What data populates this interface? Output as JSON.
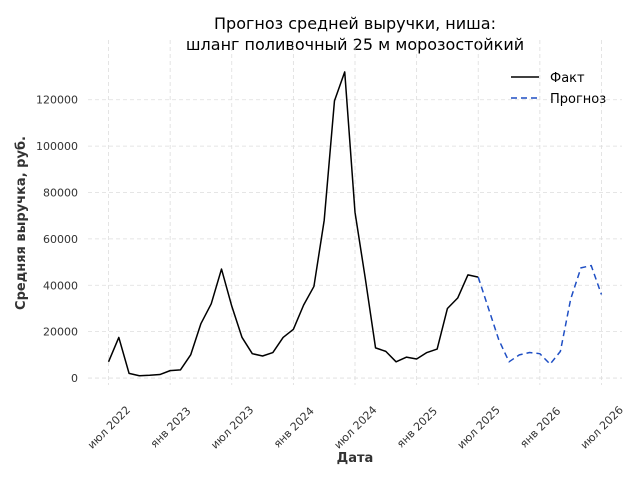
{
  "chart_data": {
    "type": "line",
    "title_line1": "Прогноз средней выручки, ниша:",
    "title_line2": "шланг поливочный 25 м морозостойкий",
    "xlabel": "Дата",
    "ylabel": "Средняя выручка, руб.",
    "ylim": [
      -3000,
      138000
    ],
    "yticks": [
      0,
      20000,
      40000,
      60000,
      80000,
      100000,
      120000
    ],
    "xticks": [
      {
        "date": "2022-07",
        "label": "июл 2022"
      },
      {
        "date": "2023-01",
        "label": "янв 2023"
      },
      {
        "date": "2023-07",
        "label": "июл 2023"
      },
      {
        "date": "2024-01",
        "label": "янв 2024"
      },
      {
        "date": "2024-07",
        "label": "июл 2024"
      },
      {
        "date": "2025-01",
        "label": "янв 2025"
      },
      {
        "date": "2025-07",
        "label": "июл 2025"
      },
      {
        "date": "2026-01",
        "label": "янв 2026"
      },
      {
        "date": "2026-07",
        "label": "июл 2026"
      }
    ],
    "xlim": [
      "2022-05",
      "2026-09"
    ],
    "grid": true,
    "legend_position": "top-right",
    "series": [
      {
        "name": "Факт",
        "color": "#000000",
        "style": "solid",
        "points": [
          [
            "2022-07",
            7000
          ],
          [
            "2022-08",
            17500
          ],
          [
            "2022-09",
            2000
          ],
          [
            "2022-10",
            1000
          ],
          [
            "2022-11",
            1200
          ],
          [
            "2022-12",
            1500
          ],
          [
            "2023-01",
            3200
          ],
          [
            "2023-02",
            3500
          ],
          [
            "2023-03",
            10000
          ],
          [
            "2023-04",
            23500
          ],
          [
            "2023-05",
            32000
          ],
          [
            "2023-06",
            47000
          ],
          [
            "2023-07",
            31000
          ],
          [
            "2023-08",
            17500
          ],
          [
            "2023-09",
            10500
          ],
          [
            "2023-10",
            9500
          ],
          [
            "2023-11",
            11000
          ],
          [
            "2023-12",
            17500
          ],
          [
            "2024-01",
            21000
          ],
          [
            "2024-02",
            31500
          ],
          [
            "2024-03",
            39500
          ],
          [
            "2024-04",
            68000
          ],
          [
            "2024-05",
            119500
          ],
          [
            "2024-06",
            132000
          ],
          [
            "2024-07",
            71500
          ],
          [
            "2024-08",
            43000
          ],
          [
            "2024-09",
            13000
          ],
          [
            "2024-10",
            11500
          ],
          [
            "2024-11",
            7000
          ],
          [
            "2024-12",
            9000
          ],
          [
            "2025-01",
            8200
          ],
          [
            "2025-02",
            11000
          ],
          [
            "2025-03",
            12500
          ],
          [
            "2025-04",
            30000
          ],
          [
            "2025-05",
            34500
          ],
          [
            "2025-06",
            44500
          ],
          [
            "2025-07",
            43500
          ]
        ]
      },
      {
        "name": "Прогноз",
        "color": "#1f4fc4",
        "style": "dashed",
        "points": [
          [
            "2025-07",
            43500
          ],
          [
            "2025-08",
            30000
          ],
          [
            "2025-09",
            16500
          ],
          [
            "2025-10",
            7000
          ],
          [
            "2025-11",
            10000
          ],
          [
            "2025-12",
            11000
          ],
          [
            "2026-01",
            10500
          ],
          [
            "2026-02",
            6000
          ],
          [
            "2026-03",
            11500
          ],
          [
            "2026-04",
            34000
          ],
          [
            "2026-05",
            47500
          ],
          [
            "2026-06",
            48500
          ],
          [
            "2026-07",
            36000
          ]
        ]
      }
    ]
  }
}
